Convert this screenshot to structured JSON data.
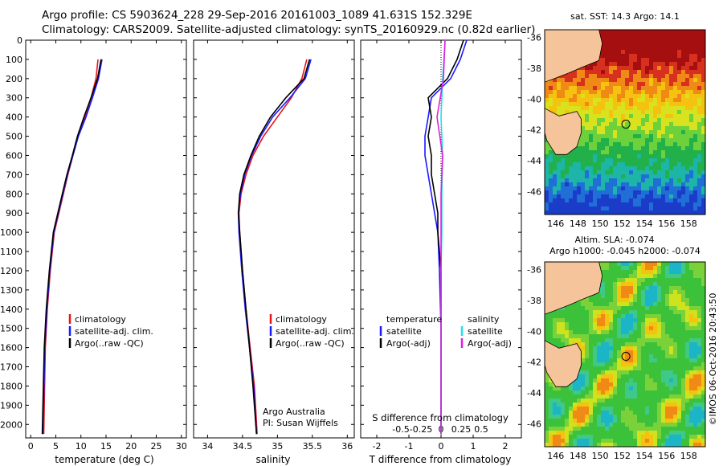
{
  "header": {
    "line1": "Argo profile: CS 5903624_228 29-Sep-2016 20161003_1089 41.631S 152.329E",
    "line2": "Climatology: CARS2009. Satellite-adjusted climatology: synTS_20160929.nc (0.82d earlier)"
  },
  "colors": {
    "climatology": "#e8141a",
    "satellite": "#1a1aff",
    "argo": "#000000",
    "sal_satellite": "#22e0e8",
    "sal_argo": "#e020e0",
    "land": "#f5c49a",
    "ocean_base": "#22c43a"
  },
  "y_axis": {
    "depth_ticks": [
      "0",
      "100",
      "200",
      "300",
      "400",
      "500",
      "600",
      "700",
      "800",
      "900",
      "1000",
      "1100",
      "1200",
      "1300",
      "1400",
      "1500",
      "1600",
      "1700",
      "1800",
      "1900",
      "2000"
    ]
  },
  "panels": {
    "temperature": {
      "xlabel": "temperature (deg C)",
      "ticks": [
        "0",
        "5",
        "10",
        "15",
        "20",
        "25",
        "30"
      ],
      "legend": [
        "climatology",
        "satellite-adj. clim.",
        "Argo(..raw -QC)"
      ]
    },
    "salinity": {
      "xlabel": "salinity",
      "ticks": [
        "34",
        "34.5",
        "35",
        "35.5",
        "36"
      ],
      "legend": [
        "climatology",
        "satellite-adj. clim.",
        "Argo(..raw -QC)"
      ],
      "note1": "Argo Australia",
      "note2": "PI: Susan Wijffels"
    },
    "difference": {
      "xlabel": "T difference from climatology",
      "top_label": "S difference from climatology",
      "t_ticks": [
        "-2",
        "-1",
        "0",
        "1",
        "2"
      ],
      "s_ticks": [
        "-0.5",
        "-0.25",
        "0",
        "0.25",
        "0.5"
      ],
      "legend_t_title": "temperature",
      "legend_t": [
        "satellite",
        "Argo(-adj)"
      ],
      "legend_s_title": "salinity",
      "legend_s": [
        "satellite",
        "Argo(-adj)"
      ]
    }
  },
  "maps": {
    "sst_title": "sat. SST: 14.3 Argo: 14.1",
    "sla_title1": "Altim. SLA: -0.074",
    "sla_title2": "Argo h1000: -0.045 h2000: -0.074",
    "lat_ticks": [
      "-36",
      "-38",
      "-40",
      "-42",
      "-44",
      "-46"
    ],
    "lon_ticks": [
      "146",
      "148",
      "150",
      "152",
      "154",
      "156",
      "158"
    ]
  },
  "footer": "©IMOS 06-Oct-2016 20:43:50",
  "chart_data": [
    {
      "type": "line",
      "title": "",
      "xlabel": "temperature (deg C)",
      "ylabel": "",
      "xlim": [
        -1,
        31
      ],
      "ylim": [
        2070,
        0
      ],
      "series": [
        {
          "name": "climatology",
          "x": [
            13.4,
            13.0,
            12.0,
            10.8,
            9.4,
            8.4,
            7.4,
            6.5,
            5.6,
            4.7,
            3.9,
            3.3,
            2.9,
            2.6
          ],
          "y": [
            100,
            200,
            300,
            400,
            500,
            600,
            700,
            800,
            900,
            1000,
            1200,
            1400,
            1600,
            2050
          ]
        },
        {
          "name": "satellite-adj. clim.",
          "x": [
            14.2,
            13.5,
            12.3,
            11.0,
            9.5,
            8.4,
            7.3,
            6.4,
            5.5,
            4.6,
            3.8,
            3.2,
            2.8,
            2.4
          ],
          "y": [
            100,
            200,
            300,
            400,
            500,
            600,
            700,
            800,
            900,
            1000,
            1200,
            1400,
            1600,
            2050
          ]
        },
        {
          "name": "Argo(..raw -QC)",
          "x": [
            14.0,
            13.3,
            12.0,
            10.6,
            9.3,
            8.3,
            7.2,
            6.3,
            5.4,
            4.5,
            3.7,
            3.1,
            2.7,
            2.3
          ],
          "y": [
            100,
            200,
            300,
            400,
            500,
            600,
            700,
            800,
            900,
            1000,
            1200,
            1400,
            1600,
            2050
          ]
        }
      ]
    },
    {
      "type": "line",
      "title": "",
      "xlabel": "salinity",
      "ylabel": "",
      "xlim": [
        33.8,
        36.1
      ],
      "ylim": [
        2070,
        0
      ],
      "series": [
        {
          "name": "climatology",
          "x": [
            35.42,
            35.35,
            35.2,
            35.0,
            34.8,
            34.65,
            34.55,
            34.48,
            34.45,
            34.46,
            34.5,
            34.55,
            34.61,
            34.67,
            34.71
          ],
          "y": [
            100,
            200,
            300,
            400,
            500,
            600,
            700,
            800,
            900,
            1000,
            1200,
            1400,
            1600,
            1800,
            2050
          ]
        },
        {
          "name": "satellite-adj. clim.",
          "x": [
            35.48,
            35.4,
            35.18,
            34.93,
            34.76,
            34.63,
            34.53,
            34.47,
            34.44,
            34.45,
            34.49,
            34.54,
            34.6,
            34.66,
            34.7
          ],
          "y": [
            100,
            200,
            300,
            400,
            500,
            600,
            700,
            800,
            900,
            1000,
            1200,
            1400,
            1600,
            1800,
            2050
          ]
        },
        {
          "name": "Argo(..raw -QC)",
          "x": [
            35.46,
            35.38,
            35.12,
            34.9,
            34.74,
            34.62,
            34.52,
            34.46,
            34.44,
            34.46,
            34.5,
            34.55,
            34.6,
            34.65,
            34.7
          ],
          "y": [
            100,
            200,
            300,
            400,
            500,
            600,
            700,
            800,
            900,
            1000,
            1200,
            1400,
            1600,
            1800,
            2050
          ]
        }
      ]
    },
    {
      "type": "line",
      "title": "",
      "xlabel": "T difference from climatology",
      "ylabel": "",
      "xlim": [
        -2.5,
        2.5
      ],
      "ylim": [
        2070,
        0
      ],
      "series": [
        {
          "name": "temperature satellite",
          "x": [
            0.8,
            0.6,
            0.3,
            -0.3,
            -0.4,
            -0.5,
            -0.5,
            -0.4,
            -0.3,
            -0.2,
            -0.1,
            -0.05,
            0.0,
            0.0
          ],
          "y": [
            0,
            100,
            200,
            300,
            400,
            500,
            600,
            700,
            800,
            900,
            1000,
            1200,
            1500,
            2050
          ]
        },
        {
          "name": "temperature Argo(-adj)",
          "x": [
            0.7,
            0.5,
            0.2,
            -0.4,
            -0.3,
            -0.4,
            -0.3,
            -0.3,
            -0.2,
            -0.1,
            -0.1,
            0.0,
            0.0,
            0.0
          ],
          "y": [
            0,
            100,
            200,
            300,
            400,
            500,
            600,
            700,
            800,
            900,
            1000,
            1200,
            1500,
            2050
          ]
        },
        {
          "name": "salinity satellite",
          "x": [
            0.05,
            0.02,
            0.0,
            0.02,
            0.01,
            0.01,
            0.0,
            0.0,
            0.0,
            0.0,
            0.0
          ],
          "y": [
            0,
            200,
            400,
            600,
            800,
            1000,
            1200,
            1400,
            1600,
            1800,
            2050
          ]
        },
        {
          "name": "salinity Argo(-adj)",
          "x": [
            0.05,
            0.03,
            -0.05,
            0.02,
            0.0,
            0.0,
            0.0,
            0.0,
            0.0,
            0.0,
            0.0
          ],
          "y": [
            0,
            200,
            400,
            600,
            800,
            1000,
            1200,
            1400,
            1600,
            1800,
            2050
          ]
        }
      ]
    }
  ]
}
